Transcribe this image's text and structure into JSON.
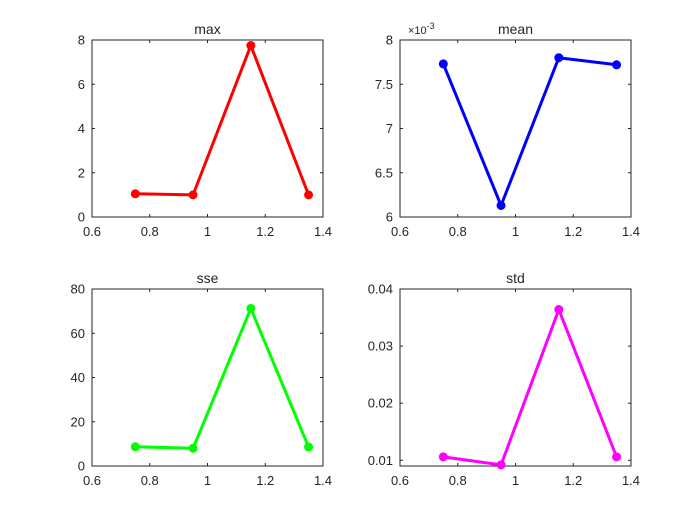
{
  "chart_data": [
    {
      "type": "line",
      "title": "max",
      "xlabel": "",
      "ylabel": "",
      "x": [
        0.75,
        0.95,
        1.15,
        1.35
      ],
      "series": [
        {
          "values": [
            1.05,
            1.0,
            7.75,
            1.0
          ],
          "color": "#ff0000"
        }
      ],
      "xlim": [
        0.6,
        1.4
      ],
      "ylim": [
        0,
        8
      ],
      "xticks": [
        0.6,
        0.8,
        1.0,
        1.2,
        1.4
      ],
      "xtick_labels": [
        "0.6",
        "0.8",
        "1",
        "1.2",
        "1.4"
      ],
      "yticks": [
        0,
        2,
        4,
        6,
        8
      ],
      "ytick_labels": [
        "0",
        "2",
        "4",
        "6",
        "8"
      ],
      "exponent_label": "",
      "grid": false
    },
    {
      "type": "line",
      "title": "mean",
      "xlabel": "",
      "ylabel": "",
      "x": [
        0.75,
        0.95,
        1.15,
        1.35
      ],
      "series": [
        {
          "values": [
            0.00773,
            0.00613,
            0.0078,
            0.00772
          ],
          "color": "#0000ff"
        }
      ],
      "xlim": [
        0.6,
        1.4
      ],
      "ylim": [
        0.006,
        0.008
      ],
      "xticks": [
        0.6,
        0.8,
        1.0,
        1.2,
        1.4
      ],
      "xtick_labels": [
        "0.6",
        "0.8",
        "1",
        "1.2",
        "1.4"
      ],
      "yticks": [
        0.006,
        0.0065,
        0.007,
        0.0075,
        0.008
      ],
      "ytick_labels": [
        "6",
        "6.5",
        "7",
        "7.5",
        "8"
      ],
      "exponent_label": "×10",
      "exponent_power": "-3",
      "grid": false
    },
    {
      "type": "line",
      "title": "sse",
      "xlabel": "",
      "ylabel": "",
      "x": [
        0.75,
        0.95,
        1.15,
        1.35
      ],
      "series": [
        {
          "values": [
            8.7,
            8.0,
            71.2,
            8.6
          ],
          "color": "#00ff00"
        }
      ],
      "xlim": [
        0.6,
        1.4
      ],
      "ylim": [
        0,
        80
      ],
      "xticks": [
        0.6,
        0.8,
        1.0,
        1.2,
        1.4
      ],
      "xtick_labels": [
        "0.6",
        "0.8",
        "1",
        "1.2",
        "1.4"
      ],
      "yticks": [
        0,
        20,
        40,
        60,
        80
      ],
      "ytick_labels": [
        "0",
        "20",
        "40",
        "60",
        "80"
      ],
      "exponent_label": "",
      "grid": false
    },
    {
      "type": "line",
      "title": "std",
      "xlabel": "",
      "ylabel": "",
      "x": [
        0.75,
        0.95,
        1.15,
        1.35
      ],
      "series": [
        {
          "values": [
            0.0106,
            0.0092,
            0.0364,
            0.0106
          ],
          "color": "#ff00ff"
        }
      ],
      "xlim": [
        0.6,
        1.4
      ],
      "ylim": [
        0.009,
        0.04
      ],
      "xticks": [
        0.6,
        0.8,
        1.0,
        1.2,
        1.4
      ],
      "xtick_labels": [
        "0.6",
        "0.8",
        "1",
        "1.2",
        "1.4"
      ],
      "yticks": [
        0.01,
        0.02,
        0.03,
        0.04
      ],
      "ytick_labels": [
        "0.01",
        "0.02",
        "0.03",
        "0.04"
      ],
      "exponent_label": "",
      "grid": false
    }
  ],
  "colors": {
    "axis": "#262626",
    "background": "#ffffff"
  }
}
